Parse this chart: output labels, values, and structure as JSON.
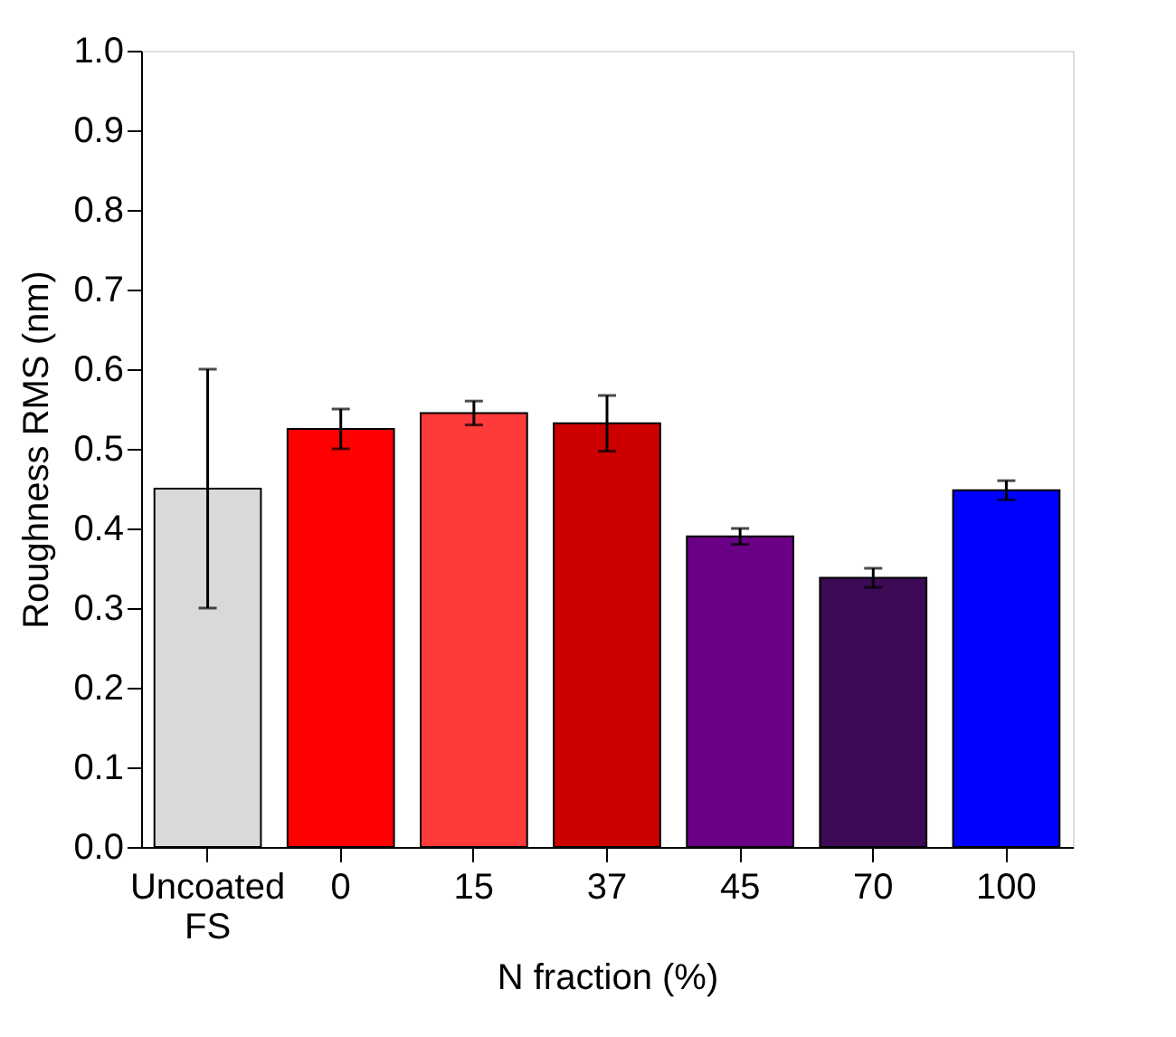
{
  "chart_data": {
    "type": "bar",
    "xlabel": "N fraction (%)",
    "ylabel": "Roughness RMS (nm)",
    "categories": [
      "Uncoated FS",
      "0",
      "15",
      "37",
      "45",
      "70",
      "100"
    ],
    "values": [
      0.45,
      0.525,
      0.545,
      0.532,
      0.39,
      0.338,
      0.448
    ],
    "errors": [
      0.15,
      0.025,
      0.015,
      0.035,
      0.01,
      0.012,
      0.012
    ],
    "colors": [
      "#d9d9d9",
      "#ff0000",
      "#ff3a3a",
      "#cc0000",
      "#6a0085",
      "#3d0a55",
      "#0000ff"
    ],
    "ylim": [
      0,
      1.0
    ],
    "yticks": [
      {
        "value": 0,
        "label": "0.0"
      },
      0.1,
      0.2,
      0.3,
      0.4,
      0.5,
      0.6,
      0.7,
      0.8,
      0.9,
      {
        "value": 1,
        "label": "1.0"
      }
    ],
    "grid": false
  }
}
